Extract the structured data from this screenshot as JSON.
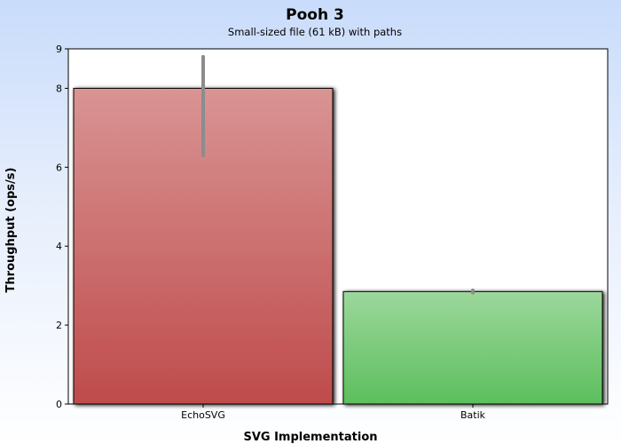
{
  "chart_data": {
    "type": "bar",
    "title": "Pooh 3",
    "subtitle": "Small-sized file (61 kB) with paths",
    "xlabel": "SVG Implementation",
    "ylabel": "Throughput (ops/s)",
    "categories": [
      "EchoSVG",
      "Batik"
    ],
    "values": [
      8.0,
      2.85
    ],
    "error_bars": [
      {
        "low": 6.3,
        "high": 8.8
      },
      {
        "low": 2.82,
        "high": 2.88
      }
    ],
    "ylim": [
      0,
      9
    ],
    "yticks": [
      0,
      2,
      4,
      6,
      8,
      9
    ],
    "grid": false,
    "legend": "none",
    "colors": {
      "EchoSVG": {
        "top": "#d99494",
        "bottom": "#bf4b4b"
      },
      "Batik": {
        "top": "#9cd79c",
        "bottom": "#5cbf5c"
      },
      "error_bar": "#8c8c8c",
      "background_top": "#c9dcfb",
      "background_bottom": "#ffffff"
    }
  }
}
